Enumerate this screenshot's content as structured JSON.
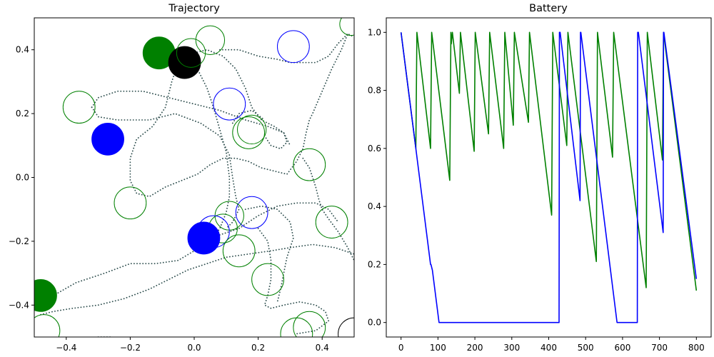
{
  "chart_data": [
    {
      "type": "scatter",
      "title": "Trajectory",
      "xlim": [
        -0.5,
        0.5
      ],
      "ylim": [
        -0.5,
        0.5
      ],
      "xticks": [
        -0.4,
        -0.2,
        0.0,
        0.2,
        0.4
      ],
      "yticks": [
        -0.4,
        -0.2,
        0.0,
        0.2,
        0.4
      ],
      "xtick_labels": [
        "−0.4",
        "−0.2",
        "0.0",
        "0.2",
        "0.4"
      ],
      "ytick_labels": [
        "−0.4",
        "−0.2",
        "0.0",
        "0.2",
        "0.4"
      ],
      "grid": false,
      "colors": {
        "path": "#2f4f4f",
        "green": "#008000",
        "blue": "#0000ff",
        "black": "#000000"
      },
      "paths": [
        [
          [
            -0.03,
            0.37
          ],
          [
            0.0,
            0.39
          ],
          [
            0.04,
            0.4
          ],
          [
            0.09,
            0.38
          ],
          [
            0.13,
            0.34
          ],
          [
            0.16,
            0.28
          ],
          [
            0.18,
            0.22
          ],
          [
            0.21,
            0.18
          ],
          [
            0.25,
            0.16
          ],
          [
            0.28,
            0.14
          ],
          [
            0.29,
            0.11
          ],
          [
            0.27,
            0.09
          ],
          [
            0.24,
            0.1
          ],
          [
            0.22,
            0.13
          ]
        ],
        [
          [
            -0.32,
            0.22
          ],
          [
            -0.3,
            0.25
          ],
          [
            -0.24,
            0.27
          ],
          [
            -0.16,
            0.27
          ],
          [
            -0.08,
            0.25
          ],
          [
            0.0,
            0.23
          ],
          [
            0.08,
            0.21
          ],
          [
            0.16,
            0.18
          ],
          [
            0.23,
            0.16
          ],
          [
            0.28,
            0.14
          ],
          [
            0.3,
            0.1
          ]
        ],
        [
          [
            -0.32,
            0.22
          ],
          [
            -0.3,
            0.19
          ],
          [
            -0.24,
            0.18
          ],
          [
            -0.14,
            0.18
          ],
          [
            -0.06,
            0.2
          ],
          [
            0.02,
            0.17
          ],
          [
            0.08,
            0.13
          ],
          [
            0.11,
            0.07
          ],
          [
            0.12,
            0.0
          ],
          [
            0.13,
            -0.06
          ],
          [
            0.14,
            -0.1
          ],
          [
            0.12,
            -0.14
          ],
          [
            0.1,
            -0.16
          ]
        ],
        [
          [
            -0.05,
            0.36
          ],
          [
            -0.07,
            0.3
          ],
          [
            -0.09,
            0.22
          ],
          [
            -0.13,
            0.16
          ],
          [
            -0.18,
            0.12
          ],
          [
            -0.2,
            0.06
          ],
          [
            -0.2,
            -0.01
          ],
          [
            -0.18,
            -0.05
          ],
          [
            -0.14,
            -0.06
          ],
          [
            -0.09,
            -0.03
          ],
          [
            -0.04,
            -0.01
          ],
          [
            0.01,
            0.01
          ],
          [
            0.05,
            0.04
          ],
          [
            0.09,
            0.06
          ],
          [
            0.13,
            0.06
          ],
          [
            0.17,
            0.05
          ],
          [
            0.21,
            0.03
          ],
          [
            0.25,
            0.02
          ],
          [
            0.29,
            0.01
          ],
          [
            0.32,
            0.05
          ],
          [
            0.34,
            0.09
          ],
          [
            0.35,
            0.14
          ],
          [
            0.36,
            0.18
          ],
          [
            0.37,
            0.2
          ],
          [
            0.4,
            0.27
          ],
          [
            0.43,
            0.34
          ],
          [
            0.46,
            0.4
          ],
          [
            0.48,
            0.45
          ],
          [
            0.5,
            0.44
          ]
        ],
        [
          [
            0.34,
            0.06
          ],
          [
            0.36,
            0.03
          ],
          [
            0.37,
            0.0
          ],
          [
            0.38,
            -0.03
          ],
          [
            0.39,
            -0.07
          ],
          [
            0.4,
            -0.1
          ],
          [
            0.42,
            -0.13
          ],
          [
            0.45,
            -0.17
          ],
          [
            0.48,
            -0.22
          ],
          [
            0.5,
            -0.26
          ]
        ],
        [
          [
            -0.02,
            0.38
          ],
          [
            0.01,
            0.34
          ],
          [
            0.04,
            0.28
          ],
          [
            0.06,
            0.22
          ],
          [
            0.08,
            0.15
          ],
          [
            0.1,
            0.08
          ],
          [
            0.11,
            0.0
          ],
          [
            0.11,
            -0.06
          ],
          [
            0.1,
            -0.11
          ],
          [
            0.08,
            -0.16
          ],
          [
            0.06,
            -0.19
          ],
          [
            0.03,
            -0.21
          ]
        ],
        [
          [
            -0.48,
            -0.41
          ],
          [
            -0.44,
            -0.37
          ],
          [
            -0.37,
            -0.33
          ],
          [
            -0.28,
            -0.3
          ],
          [
            -0.2,
            -0.27
          ],
          [
            -0.12,
            -0.27
          ],
          [
            -0.05,
            -0.26
          ],
          [
            0.0,
            -0.23
          ],
          [
            0.03,
            -0.2
          ],
          [
            0.08,
            -0.18
          ],
          [
            0.14,
            -0.16
          ],
          [
            0.2,
            -0.12
          ],
          [
            0.26,
            -0.09
          ],
          [
            0.32,
            -0.08
          ],
          [
            0.38,
            -0.08
          ],
          [
            0.42,
            -0.1
          ],
          [
            0.45,
            -0.14
          ]
        ],
        [
          [
            -0.48,
            -0.43
          ],
          [
            -0.44,
            -0.42
          ],
          [
            -0.38,
            -0.41
          ],
          [
            -0.3,
            -0.4
          ],
          [
            -0.22,
            -0.38
          ],
          [
            -0.14,
            -0.35
          ],
          [
            -0.08,
            -0.32
          ],
          [
            -0.02,
            -0.29
          ],
          [
            0.04,
            -0.27
          ],
          [
            0.1,
            -0.25
          ],
          [
            0.17,
            -0.24
          ],
          [
            0.24,
            -0.23
          ],
          [
            0.3,
            -0.22
          ],
          [
            0.37,
            -0.21
          ],
          [
            0.44,
            -0.22
          ],
          [
            0.5,
            -0.24
          ]
        ],
        [
          [
            0.2,
            -0.16
          ],
          [
            0.23,
            -0.2
          ],
          [
            0.24,
            -0.26
          ],
          [
            0.24,
            -0.32
          ],
          [
            0.23,
            -0.37
          ],
          [
            0.22,
            -0.4
          ],
          [
            0.24,
            -0.41
          ],
          [
            0.28,
            -0.4
          ],
          [
            0.33,
            -0.39
          ],
          [
            0.38,
            -0.4
          ],
          [
            0.41,
            -0.42
          ],
          [
            0.42,
            -0.45
          ],
          [
            0.38,
            -0.48
          ],
          [
            0.32,
            -0.49
          ]
        ],
        [
          [
            0.16,
            -0.1
          ],
          [
            0.21,
            -0.09
          ],
          [
            0.26,
            -0.1
          ],
          [
            0.3,
            -0.14
          ],
          [
            0.31,
            -0.19
          ],
          [
            0.29,
            -0.25
          ],
          [
            0.28,
            -0.3
          ],
          [
            0.27,
            -0.35
          ],
          [
            0.26,
            -0.39
          ]
        ],
        [
          [
            0.12,
            0.17
          ],
          [
            0.14,
            0.2
          ],
          [
            0.18,
            0.21
          ],
          [
            0.22,
            0.18
          ]
        ],
        [
          [
            -0.3,
            -0.5
          ],
          [
            -0.26,
            -0.5
          ]
        ],
        [
          [
            0.08,
            0.4
          ],
          [
            0.14,
            0.4
          ],
          [
            0.2,
            0.38
          ],
          [
            0.26,
            0.37
          ],
          [
            0.3,
            0.36
          ],
          [
            0.34,
            0.36
          ],
          [
            0.38,
            0.36
          ],
          [
            0.42,
            0.38
          ],
          [
            0.45,
            0.42
          ],
          [
            0.48,
            0.45
          ]
        ]
      ],
      "circles": [
        {
          "x": -0.11,
          "y": 0.39,
          "r": 0.05,
          "color": "green",
          "filled": true
        },
        {
          "x": -0.03,
          "y": 0.36,
          "r": 0.05,
          "color": "black",
          "filled": true
        },
        {
          "x": -0.01,
          "y": 0.39,
          "r": 0.045,
          "color": "green",
          "filled": false
        },
        {
          "x": 0.05,
          "y": 0.43,
          "r": 0.045,
          "color": "green",
          "filled": false
        },
        {
          "x": 0.31,
          "y": 0.41,
          "r": 0.05,
          "color": "blue",
          "filled": false
        },
        {
          "x": 0.49,
          "y": 0.48,
          "r": 0.035,
          "color": "green",
          "filled": false
        },
        {
          "x": -0.36,
          "y": 0.22,
          "r": 0.05,
          "color": "green",
          "filled": false
        },
        {
          "x": 0.11,
          "y": 0.23,
          "r": 0.05,
          "color": "blue",
          "filled": false
        },
        {
          "x": 0.17,
          "y": 0.14,
          "r": 0.05,
          "color": "green",
          "filled": false
        },
        {
          "x": 0.18,
          "y": 0.15,
          "r": 0.045,
          "color": "green",
          "filled": false
        },
        {
          "x": -0.27,
          "y": 0.12,
          "r": 0.05,
          "color": "blue",
          "filled": true
        },
        {
          "x": 0.36,
          "y": 0.04,
          "r": 0.05,
          "color": "green",
          "filled": false
        },
        {
          "x": -0.2,
          "y": -0.08,
          "r": 0.05,
          "color": "green",
          "filled": false
        },
        {
          "x": 0.18,
          "y": -0.11,
          "r": 0.05,
          "color": "blue",
          "filled": false
        },
        {
          "x": 0.11,
          "y": -0.12,
          "r": 0.045,
          "color": "green",
          "filled": false
        },
        {
          "x": 0.09,
          "y": -0.16,
          "r": 0.045,
          "color": "green",
          "filled": false
        },
        {
          "x": 0.43,
          "y": -0.14,
          "r": 0.05,
          "color": "green",
          "filled": false
        },
        {
          "x": 0.06,
          "y": -0.17,
          "r": 0.05,
          "color": "blue",
          "filled": false
        },
        {
          "x": 0.03,
          "y": -0.19,
          "r": 0.05,
          "color": "blue",
          "filled": true
        },
        {
          "x": 0.14,
          "y": -0.23,
          "r": 0.05,
          "color": "green",
          "filled": false
        },
        {
          "x": 0.23,
          "y": -0.32,
          "r": 0.05,
          "color": "green",
          "filled": false
        },
        {
          "x": -0.48,
          "y": -0.37,
          "r": 0.05,
          "color": "green",
          "filled": true
        },
        {
          "x": -0.47,
          "y": -0.48,
          "r": 0.05,
          "color": "green",
          "filled": false
        },
        {
          "x": 0.36,
          "y": -0.47,
          "r": 0.05,
          "color": "green",
          "filled": false
        },
        {
          "x": 0.32,
          "y": -0.49,
          "r": 0.05,
          "color": "green",
          "filled": false
        },
        {
          "x": 0.5,
          "y": -0.49,
          "r": 0.05,
          "color": "black",
          "filled": false
        }
      ]
    },
    {
      "type": "line",
      "title": "Battery",
      "xlim": [
        -40,
        840
      ],
      "ylim": [
        -0.05,
        1.05
      ],
      "xticks": [
        0,
        100,
        200,
        300,
        400,
        500,
        600,
        700,
        800
      ],
      "yticks": [
        0.0,
        0.2,
        0.4,
        0.6,
        0.8,
        1.0
      ],
      "xtick_labels": [
        "0",
        "100",
        "200",
        "300",
        "400",
        "500",
        "600",
        "700",
        "800"
      ],
      "ytick_labels": [
        "0.0",
        "0.2",
        "0.4",
        "0.6",
        "0.8",
        "1.0"
      ],
      "grid": false,
      "series": [
        {
          "color": "#008000",
          "x": [
            0,
            40,
            43,
            80,
            83,
            132,
            135,
            136,
            139,
            158,
            161,
            198,
            201,
            237,
            240,
            278,
            281,
            304,
            307,
            345,
            348,
            408,
            411,
            449,
            452,
            529,
            532,
            573,
            576,
            664,
            667,
            708,
            711,
            800
          ],
          "y": [
            1.0,
            0.6,
            1.0,
            0.6,
            1.0,
            0.49,
            1.0,
            0.96,
            1.0,
            0.79,
            1.0,
            0.59,
            1.0,
            0.65,
            1.0,
            0.6,
            1.0,
            0.68,
            1.0,
            0.69,
            1.0,
            0.37,
            1.0,
            0.61,
            1.0,
            0.21,
            1.0,
            0.57,
            1.0,
            0.12,
            1.0,
            0.56,
            1.0,
            0.11
          ]
        },
        {
          "color": "#0000ff",
          "x": [
            0,
            40,
            80,
            81,
            85,
            103,
            428,
            429,
            431,
            485,
            486,
            487,
            585,
            586,
            640,
            641,
            643,
            710,
            711,
            712,
            800
          ],
          "y": [
            1.0,
            0.6,
            0.2,
            0.2,
            0.18,
            0.0,
            0.0,
            1.0,
            1.0,
            0.42,
            1.0,
            1.0,
            0.0,
            0.0,
            0.0,
            1.0,
            1.0,
            0.31,
            1.0,
            1.0,
            0.15
          ]
        }
      ]
    }
  ]
}
